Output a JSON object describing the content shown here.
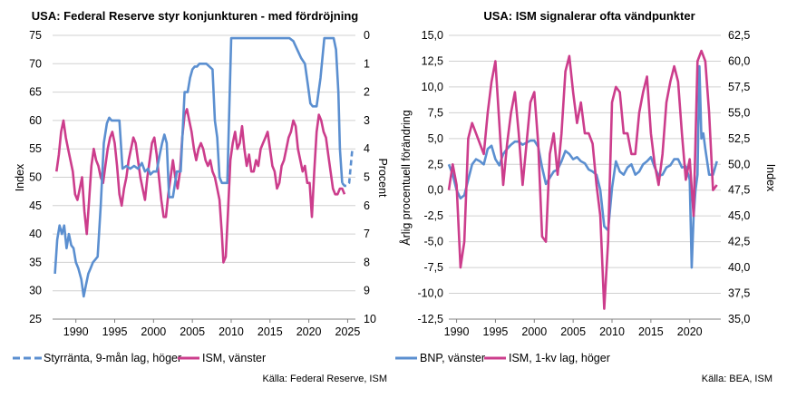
{
  "colors": {
    "blue": "#5b8fd0",
    "magenta": "#cc3d8c"
  },
  "charts": [
    {
      "title": "USA: Federal Reserve styr konjunkturen - med fördröjning",
      "ylabel_left": "Index",
      "ylabel_right": "Procent",
      "left_ticks": [
        "75",
        "70",
        "65",
        "60",
        "55",
        "50",
        "45",
        "40",
        "35",
        "30",
        "25"
      ],
      "right_ticks": [
        "0",
        "1",
        "2",
        "3",
        "4",
        "5",
        "6",
        "7",
        "8",
        "9",
        "10"
      ],
      "x_ticks": [
        "1990",
        "1995",
        "2000",
        "2005",
        "2010",
        "2015",
        "2020",
        "2025"
      ],
      "legend": [
        {
          "label": "Styrränta, 9-mån lag, höger",
          "style": "dashed",
          "color": "blue"
        },
        {
          "label": "ISM, vänster",
          "style": "solid",
          "color": "magenta"
        }
      ],
      "source": "Källa: Federal Reserve, ISM"
    },
    {
      "title": "USA: ISM signalerar ofta vändpunkter",
      "ylabel_left": "Årlig procentuell förändring",
      "ylabel_right": "Index",
      "left_ticks": [
        "15,0",
        "12,5",
        "10,0",
        "7,5",
        "5,0",
        "2,5",
        "0,0",
        "-2,5",
        "-5,0",
        "-7,5",
        "-10,0",
        "-12,5"
      ],
      "right_ticks": [
        "62,5",
        "60,0",
        "57,5",
        "55,0",
        "52,5",
        "50,0",
        "47,5",
        "45,0",
        "42,5",
        "40,0",
        "37,5",
        "35,0"
      ],
      "x_ticks": [
        "1990",
        "1995",
        "2000",
        "2005",
        "2010",
        "2015",
        "2020"
      ],
      "legend": [
        {
          "label": "BNP, vänster",
          "style": "solid",
          "color": "blue"
        },
        {
          "label": "ISM, 1-kv lag, höger",
          "style": "solid",
          "color": "magenta"
        }
      ],
      "source": "Källa: BEA, ISM"
    }
  ],
  "chart_data": [
    {
      "type": "line",
      "title": "USA: Federal Reserve styr konjunkturen - med fördröjning",
      "ylabel": "Index",
      "y2label": "Procent",
      "ylim": [
        25,
        75
      ],
      "y2lim": [
        10,
        0
      ],
      "xlim": [
        1987,
        2026
      ],
      "series": [
        {
          "name": "Styrränta, 9-mån lag, höger",
          "axis": "right",
          "x": [
            1987.3,
            1987.6,
            1987.9,
            1988.2,
            1988.5,
            1988.8,
            1989.1,
            1989.4,
            1989.7,
            1990.0,
            1990.3,
            1990.7,
            1991.0,
            1991.3,
            1991.6,
            1991.9,
            1992.2,
            1992.5,
            1992.8,
            1993.2,
            1993.6,
            1994.0,
            1994.3,
            1994.6,
            1994.9,
            1995.3,
            1995.6,
            1996.0,
            1996.5,
            1997.0,
            1997.5,
            1998.0,
            1998.5,
            1998.9,
            1999.3,
            1999.6,
            2000.0,
            2000.4,
            2000.8,
            2001.1,
            2001.4,
            2001.7,
            2002.0,
            2002.5,
            2003.0,
            2003.5,
            2004.0,
            2004.4,
            2004.7,
            2005.0,
            2005.3,
            2005.6,
            2005.9,
            2006.2,
            2006.5,
            2006.8,
            2007.2,
            2007.6,
            2007.9,
            2008.2,
            2008.5,
            2008.8,
            2009.1,
            2009.5,
            2010.0,
            2011.0,
            2012.0,
            2013.0,
            2014.0,
            2015.0,
            2016.0,
            2017.0,
            2017.5,
            2018.0,
            2018.5,
            2019.0,
            2019.5,
            2019.9,
            2020.2,
            2020.5,
            2021.0,
            2021.5,
            2022.0,
            2022.3,
            2022.6,
            2022.9,
            2023.2,
            2023.5,
            2023.8,
            2024.0,
            2024.3,
            2024.6,
            2024.9,
            2025.2,
            2025.6
          ],
          "y": [
            8.4,
            7.2,
            6.7,
            7.0,
            6.7,
            7.5,
            7.0,
            7.4,
            7.5,
            8.0,
            8.2,
            8.6,
            9.2,
            8.8,
            8.4,
            8.2,
            8.0,
            7.9,
            7.8,
            6.0,
            3.8,
            3.1,
            2.9,
            3.0,
            3.0,
            3.0,
            3.0,
            4.7,
            4.6,
            4.7,
            4.6,
            4.7,
            4.5,
            4.8,
            4.7,
            4.9,
            4.8,
            4.8,
            4.2,
            3.8,
            3.5,
            3.8,
            5.7,
            5.7,
            4.8,
            4.8,
            2.0,
            2.0,
            1.5,
            1.2,
            1.1,
            1.1,
            1.0,
            1.0,
            1.0,
            1.0,
            1.1,
            1.2,
            3.0,
            3.6,
            5.0,
            5.2,
            5.2,
            5.2,
            0.1,
            0.1,
            0.1,
            0.1,
            0.1,
            0.1,
            0.1,
            0.1,
            0.1,
            0.2,
            0.5,
            0.8,
            1.0,
            1.8,
            2.4,
            2.5,
            2.5,
            1.5,
            0.1,
            0.1,
            0.1,
            0.1,
            0.1,
            0.5,
            2.0,
            4.0,
            5.2,
            5.3,
            5.3,
            5.2,
            4.0
          ]
        },
        {
          "name": "ISM, vänster",
          "axis": "left",
          "x": [
            1987.5,
            1987.8,
            1988.1,
            1988.4,
            1988.7,
            1989.0,
            1989.3,
            1989.6,
            1989.9,
            1990.2,
            1990.5,
            1990.8,
            1991.1,
            1991.4,
            1991.7,
            1992.0,
            1992.3,
            1992.6,
            1992.9,
            1993.2,
            1993.5,
            1993.8,
            1994.1,
            1994.4,
            1994.7,
            1995.0,
            1995.3,
            1995.6,
            1995.9,
            1996.2,
            1996.5,
            1996.8,
            1997.1,
            1997.4,
            1997.7,
            1998.0,
            1998.3,
            1998.6,
            1998.9,
            1999.2,
            1999.5,
            1999.8,
            2000.1,
            2000.4,
            2000.7,
            2001.0,
            2001.3,
            2001.6,
            2001.9,
            2002.2,
            2002.5,
            2002.8,
            2003.1,
            2003.4,
            2003.7,
            2004.0,
            2004.3,
            2004.6,
            2004.9,
            2005.2,
            2005.5,
            2005.8,
            2006.1,
            2006.4,
            2006.7,
            2007.0,
            2007.3,
            2007.6,
            2007.9,
            2008.2,
            2008.5,
            2008.8,
            2009.0,
            2009.3,
            2009.6,
            2009.9,
            2010.2,
            2010.5,
            2010.8,
            2011.1,
            2011.4,
            2011.7,
            2012.0,
            2012.3,
            2012.6,
            2012.9,
            2013.2,
            2013.5,
            2013.8,
            2014.1,
            2014.4,
            2014.7,
            2015.0,
            2015.3,
            2015.6,
            2015.9,
            2016.2,
            2016.5,
            2016.8,
            2017.1,
            2017.4,
            2017.7,
            2018.0,
            2018.3,
            2018.6,
            2018.9,
            2019.2,
            2019.5,
            2019.8,
            2020.1,
            2020.4,
            2020.7,
            2021.0,
            2021.3,
            2021.6,
            2021.9,
            2022.2,
            2022.5,
            2022.8,
            2023.1,
            2023.4,
            2023.7,
            2024.0,
            2024.3,
            2024.6
          ],
          "y": [
            51,
            54,
            58,
            60,
            57,
            55,
            53,
            51,
            47,
            46,
            48,
            50,
            44,
            40,
            46,
            52,
            55,
            53,
            52,
            50,
            49,
            52,
            55,
            57,
            58,
            56,
            52,
            47,
            45,
            48,
            50,
            53,
            55,
            57,
            56,
            53,
            50,
            48,
            46,
            50,
            53,
            56,
            57,
            54,
            50,
            46,
            43,
            43,
            47,
            50,
            53,
            50,
            48,
            51,
            57,
            61,
            62,
            60,
            58,
            55,
            53,
            55,
            56,
            55,
            53,
            52,
            53,
            51,
            50,
            48,
            46,
            40,
            35,
            36,
            44,
            53,
            56,
            58,
            55,
            56,
            59,
            55,
            52,
            54,
            51,
            51,
            53,
            52,
            55,
            56,
            57,
            58,
            55,
            52,
            51,
            48,
            49,
            52,
            53,
            55,
            57,
            58,
            60,
            59,
            55,
            53,
            51,
            52,
            49,
            49,
            43,
            51,
            58,
            61,
            60,
            58,
            57,
            54,
            51,
            48,
            47,
            47,
            48,
            48,
            47
          ]
        }
      ]
    },
    {
      "type": "line",
      "title": "USA: ISM signalerar ofta vändpunkter",
      "ylabel": "Årlig procentuell förändring",
      "y2label": "Index",
      "ylim": [
        -12.5,
        15
      ],
      "y2lim": [
        35,
        62.5
      ],
      "xlim": [
        1989,
        2024
      ],
      "series": [
        {
          "name": "BNP, vänster",
          "axis": "left",
          "x": [
            1989.0,
            1989.5,
            1990.0,
            1990.5,
            1991.0,
            1991.5,
            1992.0,
            1992.5,
            1993.0,
            1993.5,
            1994.0,
            1994.5,
            1995.0,
            1995.5,
            1996.0,
            1996.5,
            1997.0,
            1997.5,
            1998.0,
            1998.5,
            1999.0,
            1999.5,
            2000.0,
            2000.5,
            2001.0,
            2001.5,
            2002.0,
            2002.5,
            2003.0,
            2003.5,
            2004.0,
            2004.5,
            2005.0,
            2005.5,
            2006.0,
            2006.5,
            2007.0,
            2007.5,
            2008.0,
            2008.5,
            2009.0,
            2009.5,
            2010.0,
            2010.5,
            2011.0,
            2011.5,
            2012.0,
            2012.5,
            2013.0,
            2013.5,
            2014.0,
            2014.5,
            2015.0,
            2015.5,
            2016.0,
            2016.5,
            2017.0,
            2017.5,
            2018.0,
            2018.5,
            2019.0,
            2019.5,
            2020.0,
            2020.25,
            2020.5,
            2020.75,
            2021.0,
            2021.25,
            2021.5,
            2021.75,
            2022.0,
            2022.5,
            2023.0,
            2023.5
          ],
          "y": [
            2.5,
            1.5,
            0.0,
            -0.8,
            -0.5,
            1.0,
            2.5,
            3.0,
            2.8,
            2.5,
            4.0,
            4.3,
            3.0,
            2.4,
            3.5,
            4.0,
            4.4,
            4.7,
            4.7,
            4.4,
            4.6,
            4.8,
            4.8,
            4.2,
            2.2,
            0.6,
            1.2,
            1.8,
            2.0,
            2.8,
            3.8,
            3.5,
            3.0,
            3.2,
            2.8,
            2.6,
            2.0,
            1.8,
            1.5,
            0.0,
            -3.5,
            -3.9,
            0.2,
            2.8,
            1.8,
            1.5,
            2.2,
            2.5,
            1.5,
            1.8,
            2.5,
            2.8,
            3.2,
            2.2,
            1.4,
            1.5,
            2.2,
            2.4,
            3.0,
            3.0,
            2.2,
            2.3,
            1.0,
            -7.5,
            -2.5,
            0.0,
            1.5,
            12.0,
            5.0,
            5.5,
            4.0,
            1.5,
            1.5,
            2.8
          ]
        },
        {
          "name": "ISM, 1-kv lag, höger",
          "axis": "right",
          "x": [
            1989.0,
            1989.5,
            1990.0,
            1990.5,
            1991.0,
            1991.5,
            1992.0,
            1992.5,
            1993.0,
            1993.5,
            1994.0,
            1994.5,
            1995.0,
            1995.5,
            1996.0,
            1996.5,
            1997.0,
            1997.5,
            1998.0,
            1998.5,
            1999.0,
            1999.5,
            2000.0,
            2000.5,
            2001.0,
            2001.5,
            2002.0,
            2002.5,
            2003.0,
            2003.5,
            2004.0,
            2004.5,
            2005.0,
            2005.5,
            2006.0,
            2006.5,
            2007.0,
            2007.5,
            2008.0,
            2008.5,
            2009.0,
            2009.5,
            2010.0,
            2010.5,
            2011.0,
            2011.5,
            2012.0,
            2012.5,
            2013.0,
            2013.5,
            2014.0,
            2014.5,
            2015.0,
            2015.5,
            2016.0,
            2016.5,
            2017.0,
            2017.5,
            2018.0,
            2018.5,
            2019.0,
            2019.5,
            2020.0,
            2020.5,
            2021.0,
            2021.5,
            2022.0,
            2022.5,
            2023.0,
            2023.5
          ],
          "y": [
            47.5,
            50.0,
            48.0,
            40.0,
            42.5,
            52.5,
            54.0,
            53.0,
            52.0,
            51.0,
            55.0,
            58.0,
            60.0,
            54.0,
            48.0,
            52.0,
            55.0,
            57.0,
            53.0,
            48.0,
            52.0,
            56.0,
            57.0,
            52.0,
            43.0,
            42.5,
            51.0,
            53.0,
            49.0,
            53.0,
            59.0,
            60.5,
            57.0,
            54.0,
            56.0,
            53.0,
            53.0,
            52.0,
            48.0,
            45.0,
            36.0,
            42.5,
            56.0,
            57.5,
            57.0,
            53.0,
            53.0,
            51.0,
            51.0,
            55.0,
            57.0,
            58.5,
            53.0,
            50.0,
            48.0,
            51.0,
            56.0,
            58.0,
            59.5,
            58.0,
            53.0,
            48.5,
            50.5,
            45.0,
            60.0,
            61.0,
            60.0,
            55.0,
            47.5,
            48.0
          ]
        }
      ]
    }
  ]
}
